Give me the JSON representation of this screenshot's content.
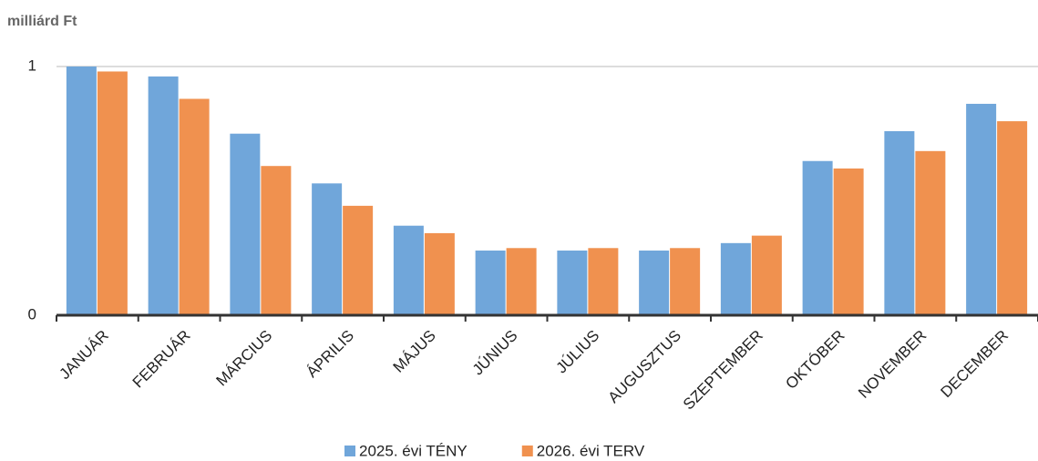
{
  "chart_data": {
    "type": "bar",
    "y_label": "milliárd Ft",
    "categories": [
      "JANUÁR",
      "FEBRUÁR",
      "MÁRCIUS",
      "ÁPRILIS",
      "MÁJUS",
      "JÚNIUS",
      "JÚLIUS",
      "AUGUSZTUS",
      "SZEPTEMBER",
      "OKTÓBER",
      "NOVEMBER",
      "DECEMBER"
    ],
    "series": [
      {
        "name": "2025. évi TÉNY",
        "color": "#70a6da",
        "values": [
          1.0,
          0.96,
          0.73,
          0.53,
          0.36,
          0.26,
          0.26,
          0.26,
          0.29,
          0.62,
          0.74,
          0.85
        ]
      },
      {
        "name": "2026. évi TERV",
        "color": "#f0914f",
        "values": [
          0.98,
          0.87,
          0.6,
          0.44,
          0.33,
          0.27,
          0.27,
          0.27,
          0.32,
          0.59,
          0.66,
          0.78
        ]
      }
    ],
    "ylim": [
      0,
      1
    ],
    "yticks": [
      0,
      1
    ],
    "grid": true
  }
}
